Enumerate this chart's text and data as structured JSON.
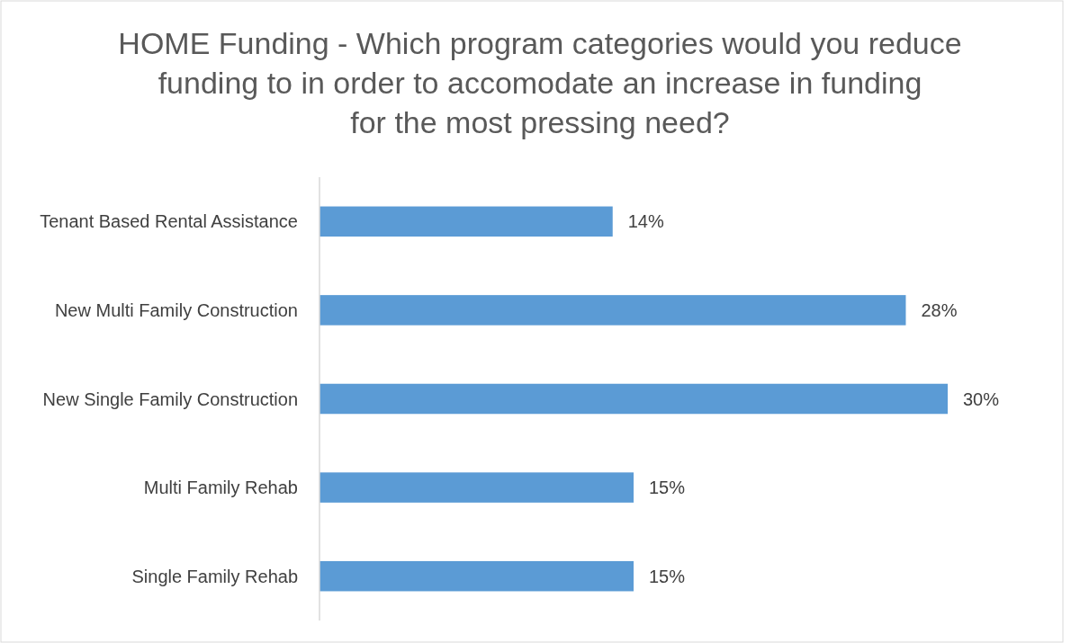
{
  "chart_data": {
    "type": "bar",
    "orientation": "horizontal",
    "title": "HOME Funding - Which program categories would you reduce funding to in order to accomodate an increase in funding for the most pressing need?",
    "categories": [
      "Tenant Based Rental Assistance",
      "New Multi Family Construction",
      "New Single Family Construction",
      "Multi Family Rehab",
      "Single Family Rehab"
    ],
    "values": [
      14,
      28,
      30,
      15,
      15
    ],
    "value_labels": [
      "14%",
      "28%",
      "30%",
      "15%",
      "15%"
    ],
    "color": "#5b9bd5"
  }
}
